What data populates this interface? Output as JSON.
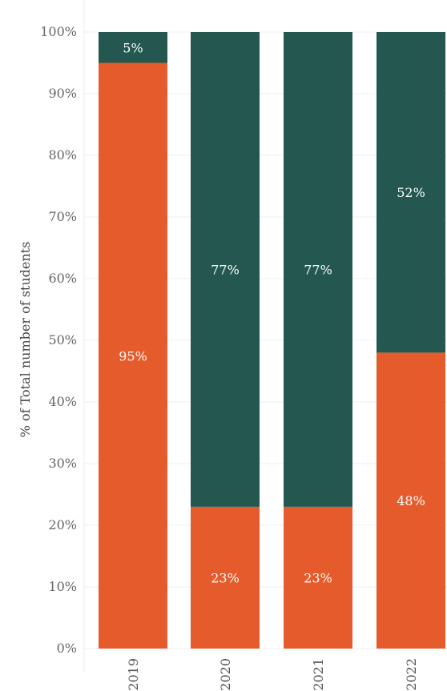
{
  "chart_data": {
    "type": "bar",
    "stacked": true,
    "categories": [
      "2019",
      "2020",
      "2021",
      "2022"
    ],
    "series": [
      {
        "values": [
          95,
          23,
          23,
          48
        ],
        "labels": [
          "95%",
          "23%",
          "23%",
          "48%"
        ],
        "color": "#E55B2B"
      },
      {
        "values": [
          5,
          77,
          77,
          52
        ],
        "labels": [
          "5%",
          "77%",
          "77%",
          "52%"
        ],
        "color": "#23574F"
      }
    ],
    "xlabel": "",
    "ylabel": "% of Total number of students",
    "ylim": [
      0,
      100
    ],
    "yticks": [
      "0%",
      "10%",
      "20%",
      "30%",
      "40%",
      "50%",
      "60%",
      "70%",
      "80%",
      "90%",
      "100%"
    ],
    "grid": true,
    "legend": "none"
  }
}
